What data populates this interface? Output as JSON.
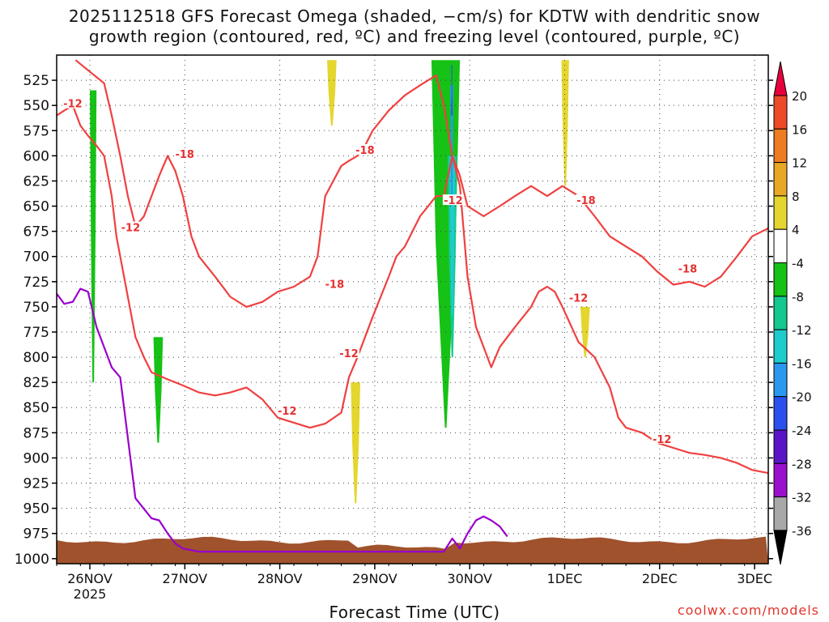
{
  "title_line1": "2025112518 GFS Forecast Omega (shaded, −cm/s) for KDTW with dendritic snow",
  "title_line2": "growth region (contoured, red, ºC) and freezing level (contoured, purple, ºC)",
  "credit": "coolwx.com/models",
  "chart_data": {
    "type": "heatmap",
    "title": "2025112518 GFS Forecast Omega (shaded, −cm/s) for KDTW with dendritic snow growth region (contoured, red, ºC) and freezing level (contoured, purple, ºC)",
    "xlabel": "Forecast Time (UTC)",
    "ylabel": "",
    "x_ticks": [
      "26NOV",
      "27NOV",
      "28NOV",
      "29NOV",
      "30NOV",
      "1DEC",
      "2DEC",
      "3DEC"
    ],
    "x_year_label": "2025",
    "xlim_days": [
      0,
      7.5
    ],
    "y_ticks": [
      525,
      550,
      575,
      600,
      625,
      650,
      675,
      700,
      725,
      750,
      775,
      800,
      825,
      850,
      875,
      900,
      925,
      950,
      975,
      1000
    ],
    "ylim": [
      1005,
      500
    ],
    "grid": true,
    "colorbar": {
      "labels": [
        "20",
        "16",
        "12",
        "8",
        "4",
        "-4",
        "-8",
        "-12",
        "-16",
        "-20",
        "-24",
        "-28",
        "-32",
        "-36"
      ],
      "colors": [
        "#e8003c",
        "#ee4a2a",
        "#ee7c22",
        "#e8a826",
        "#e4d62e",
        "#ffffff",
        "#15c215",
        "#14c890",
        "#1ecccc",
        "#2a98ee",
        "#2a50ee",
        "#5a14c8",
        "#9a10cc",
        "#a8a8a8",
        "#000000"
      ]
    },
    "contour_labels": [
      {
        "text": "-12",
        "x": 0.17,
        "y": 548
      },
      {
        "text": "-18",
        "x": 1.35,
        "y": 598
      },
      {
        "text": "-12",
        "x": 0.78,
        "y": 671
      },
      {
        "text": "-18",
        "x": 3.25,
        "y": 594
      },
      {
        "text": "-12",
        "x": 4.18,
        "y": 644
      },
      {
        "text": "-18",
        "x": 2.93,
        "y": 727
      },
      {
        "text": "-12",
        "x": 3.08,
        "y": 796
      },
      {
        "text": "-12",
        "x": 2.43,
        "y": 853
      },
      {
        "text": "-18",
        "x": 5.58,
        "y": 644
      },
      {
        "text": "-12",
        "x": 5.5,
        "y": 741
      },
      {
        "text": "-18",
        "x": 6.65,
        "y": 712
      },
      {
        "text": "-12",
        "x": 6.38,
        "y": 881
      }
    ],
    "series": [
      {
        "name": "-12",
        "color": "#f04040",
        "x": [
          0.0,
          0.08,
          0.17,
          0.25,
          0.33,
          0.42,
          0.5,
          0.58,
          0.63,
          0.67,
          0.75,
          0.83,
          0.92,
          1.0,
          1.17,
          1.33,
          1.5,
          1.67,
          1.83,
          2.0,
          2.17,
          2.33,
          2.5,
          2.67,
          2.83,
          3.0,
          3.08,
          3.17,
          3.33,
          3.5,
          3.58,
          3.67,
          3.83,
          4.0,
          4.08,
          4.17,
          4.25,
          4.33,
          4.42,
          4.5,
          4.58,
          4.67,
          4.75,
          4.83,
          5.0,
          5.08,
          5.17,
          5.25,
          5.33,
          5.5,
          5.67,
          5.83,
          5.92,
          6.0,
          6.17,
          6.33,
          6.5,
          6.67,
          6.83,
          7.0,
          7.17,
          7.33,
          7.5
        ],
        "y": [
          560,
          555,
          550,
          570,
          580,
          590,
          600,
          640,
          680,
          700,
          740,
          780,
          800,
          815,
          822,
          828,
          835,
          838,
          835,
          830,
          842,
          860,
          865,
          870,
          866,
          855,
          820,
          800,
          760,
          720,
          700,
          690,
          660,
          640,
          640,
          600,
          630,
          720,
          770,
          790,
          810,
          790,
          780,
          770,
          750,
          735,
          730,
          735,
          750,
          785,
          800,
          830,
          860,
          870,
          875,
          885,
          890,
          895,
          897,
          900,
          905,
          912,
          915
        ]
      },
      {
        "name": "-18",
        "color": "#f04040",
        "x": [
          0.2,
          0.33,
          0.5,
          0.58,
          0.67,
          0.75,
          0.83,
          0.92,
          1.0,
          1.08,
          1.17,
          1.25,
          1.33,
          1.42,
          1.5,
          1.67,
          1.83,
          2.0,
          2.17,
          2.33,
          2.5,
          2.67,
          2.75,
          2.83,
          3.0,
          3.08,
          3.17,
          3.25,
          3.33,
          3.5,
          3.67,
          3.83,
          4.0,
          4.08,
          4.17,
          4.25,
          4.33,
          4.5,
          4.67,
          4.83,
          5.0,
          5.17,
          5.33,
          5.5,
          5.67,
          5.83,
          6.0,
          6.17,
          6.33,
          6.5,
          6.67,
          6.83,
          7.0,
          7.17,
          7.33,
          7.5
        ],
        "y": [
          505,
          515,
          528,
          560,
          600,
          640,
          670,
          660,
          640,
          620,
          600,
          615,
          640,
          680,
          700,
          720,
          740,
          750,
          745,
          735,
          730,
          720,
          700,
          640,
          610,
          605,
          600,
          590,
          575,
          555,
          540,
          530,
          520,
          550,
          600,
          620,
          650,
          660,
          650,
          640,
          630,
          640,
          630,
          640,
          660,
          680,
          690,
          700,
          715,
          728,
          725,
          730,
          720,
          700,
          680,
          672
        ]
      },
      {
        "name": "0",
        "color": "#9900cc",
        "x": [
          0.0,
          0.08,
          0.17,
          0.25,
          0.33,
          0.42,
          0.5,
          0.58,
          0.67,
          0.83,
          1.0,
          1.08,
          1.17,
          1.25,
          1.33,
          1.5,
          1.67,
          2.0,
          2.17,
          4.08,
          4.17,
          4.25,
          4.33,
          4.42,
          4.5,
          4.58,
          4.67,
          4.75
        ],
        "y": [
          737,
          747,
          745,
          732,
          735,
          770,
          790,
          810,
          820,
          940,
          960,
          962,
          975,
          985,
          990,
          993,
          993,
          993,
          993,
          993,
          980,
          990,
          975,
          962,
          958,
          962,
          968,
          978
        ]
      }
    ],
    "shaded_regions": [
      {
        "value_range": "-4 to -8",
        "color": "#15c215",
        "x": [
          0.35,
          0.42
        ],
        "y": [
          535,
          825
        ]
      },
      {
        "value_range": "-4 to -8",
        "color": "#15c215",
        "x": [
          1.02,
          1.12
        ],
        "y": [
          780,
          885
        ]
      },
      {
        "value_range": "-4 to -8",
        "color": "#15c215",
        "x": [
          3.95,
          4.25
        ],
        "y": [
          505,
          870
        ]
      },
      {
        "value_range": "-8 to -12",
        "color": "#14c890",
        "x": [
          4.12,
          4.22
        ],
        "y": [
          600,
          800
        ]
      },
      {
        "value_range": "-12 to -16",
        "color": "#1ecccc",
        "x": [
          4.14,
          4.2
        ],
        "y": [
          600,
          760
        ]
      },
      {
        "value_range": "-16 to -20",
        "color": "#2a98ee",
        "x": [
          4.15,
          4.18
        ],
        "y": [
          530,
          640
        ]
      },
      {
        "value_range": "-20 to -24",
        "color": "#2a50ee",
        "x": [
          4.16,
          4.17
        ],
        "y": [
          510,
          560
        ]
      },
      {
        "value_range": "4 to 8",
        "color": "#e4d62e",
        "x": [
          2.85,
          2.95
        ],
        "y": [
          505,
          570
        ]
      },
      {
        "value_range": "4 to 8",
        "color": "#e4d62e",
        "x": [
          3.1,
          3.2
        ],
        "y": [
          825,
          945
        ]
      },
      {
        "value_range": "4 to 8",
        "color": "#e4d62e",
        "x": [
          5.32,
          5.4
        ],
        "y": [
          505,
          630
        ]
      },
      {
        "value_range": "4 to 8",
        "color": "#e4d62e",
        "x": [
          5.52,
          5.62
        ],
        "y": [
          750,
          800
        ]
      }
    ],
    "terrain": {
      "color": "#a0522d",
      "ground_pressure_hpa": 980
    }
  }
}
